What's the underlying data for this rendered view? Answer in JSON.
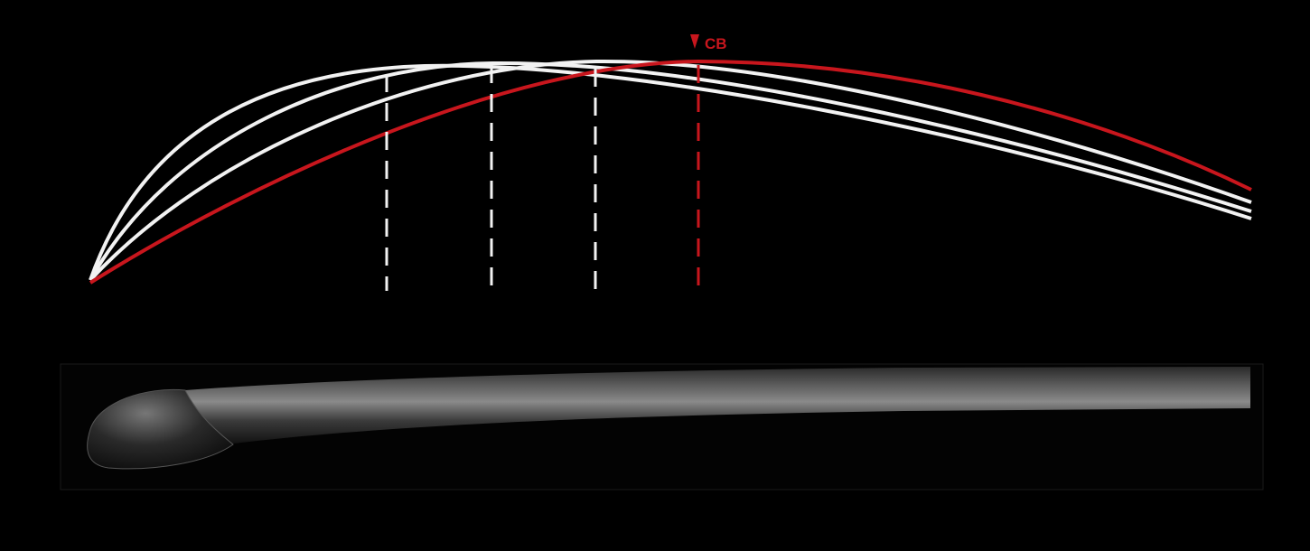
{
  "marker": {
    "label": "CB"
  }
}
